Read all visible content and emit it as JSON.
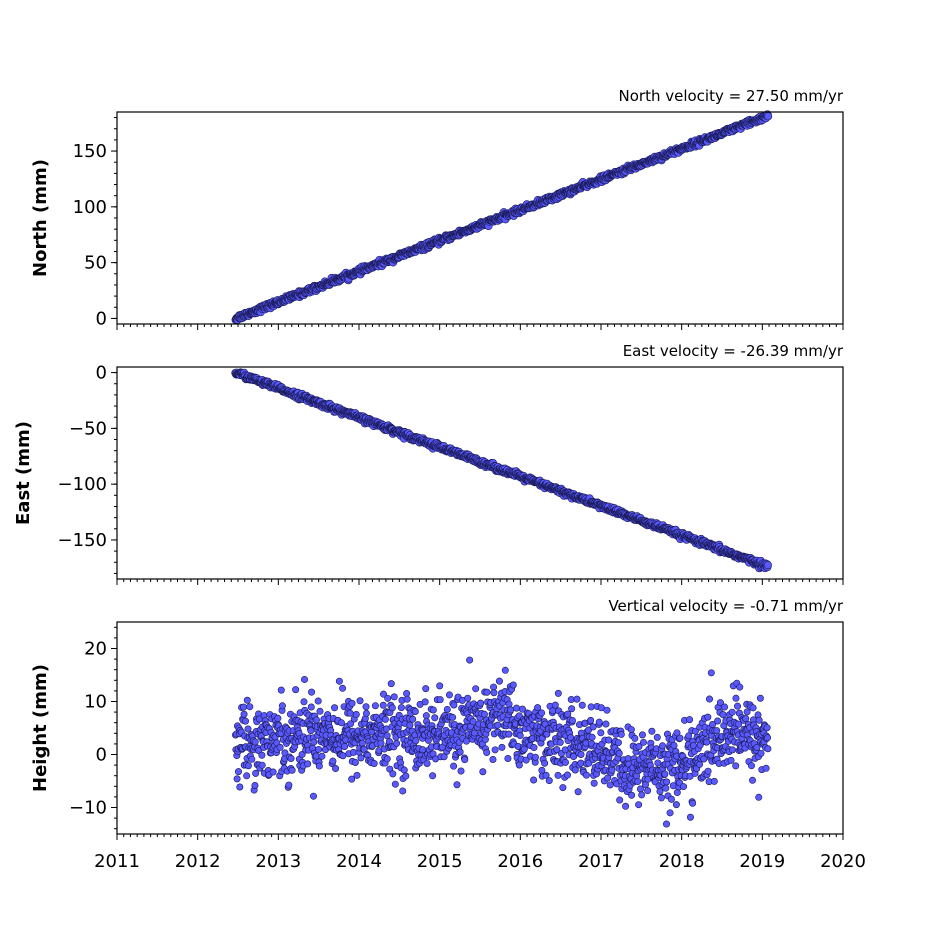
{
  "chart_data": [
    {
      "type": "scatter",
      "title": "North velocity = 27.50 mm/yr",
      "ylabel": "North (mm)",
      "xlim": [
        2011,
        2020
      ],
      "ylim": [
        -5,
        185
      ],
      "yticks": [
        0,
        50,
        100,
        150
      ],
      "x_range": [
        2012.47,
        2019.07
      ],
      "trend": {
        "start": 0,
        "slope": 27.5
      },
      "noise_mm": 1.2,
      "point_color": "#5959ff",
      "edge_color": "#1a1a55"
    },
    {
      "type": "scatter",
      "title": "East velocity = -26.39 mm/yr",
      "ylabel": "East (mm)",
      "xlim": [
        2011,
        2020
      ],
      "ylim": [
        -185,
        5
      ],
      "yticks": [
        -150,
        -100,
        -50,
        0
      ],
      "x_range": [
        2012.47,
        2019.07
      ],
      "trend": {
        "start": 0,
        "slope": -26.39
      },
      "noise_mm": 1.2,
      "point_color": "#5959ff",
      "edge_color": "#1a1a55"
    },
    {
      "type": "scatter",
      "title": "Vertical velocity = -0.71 mm/yr",
      "ylabel": "Height (mm)",
      "xlim": [
        2011,
        2020
      ],
      "ylim": [
        -15,
        25
      ],
      "yticks": [
        -10,
        0,
        10,
        20
      ],
      "xticks": [
        "2011",
        "2012",
        "2013",
        "2014",
        "2015",
        "2016",
        "2017",
        "2018",
        "2019",
        "2020"
      ],
      "x_range": [
        2012.47,
        2019.07
      ],
      "trend": {
        "start": 3,
        "slope": -0.71
      },
      "seasonal_curve": {
        "x": [
          2012.5,
          2013.0,
          2013.5,
          2014.0,
          2014.5,
          2015.0,
          2015.5,
          2015.8,
          2016.0,
          2016.5,
          2017.0,
          2017.3,
          2017.6,
          2018.0,
          2018.3,
          2018.6,
          2019.0
        ],
        "y": [
          2.5,
          3.0,
          4.5,
          3.5,
          4.0,
          3.5,
          5.5,
          8.0,
          4.0,
          2.5,
          1.0,
          -3.0,
          -2.0,
          -2.0,
          1.0,
          4.5,
          3.0
        ]
      },
      "noise_mm": 3.6,
      "point_color": "#5959ff",
      "edge_color": "#1a1a55"
    }
  ]
}
